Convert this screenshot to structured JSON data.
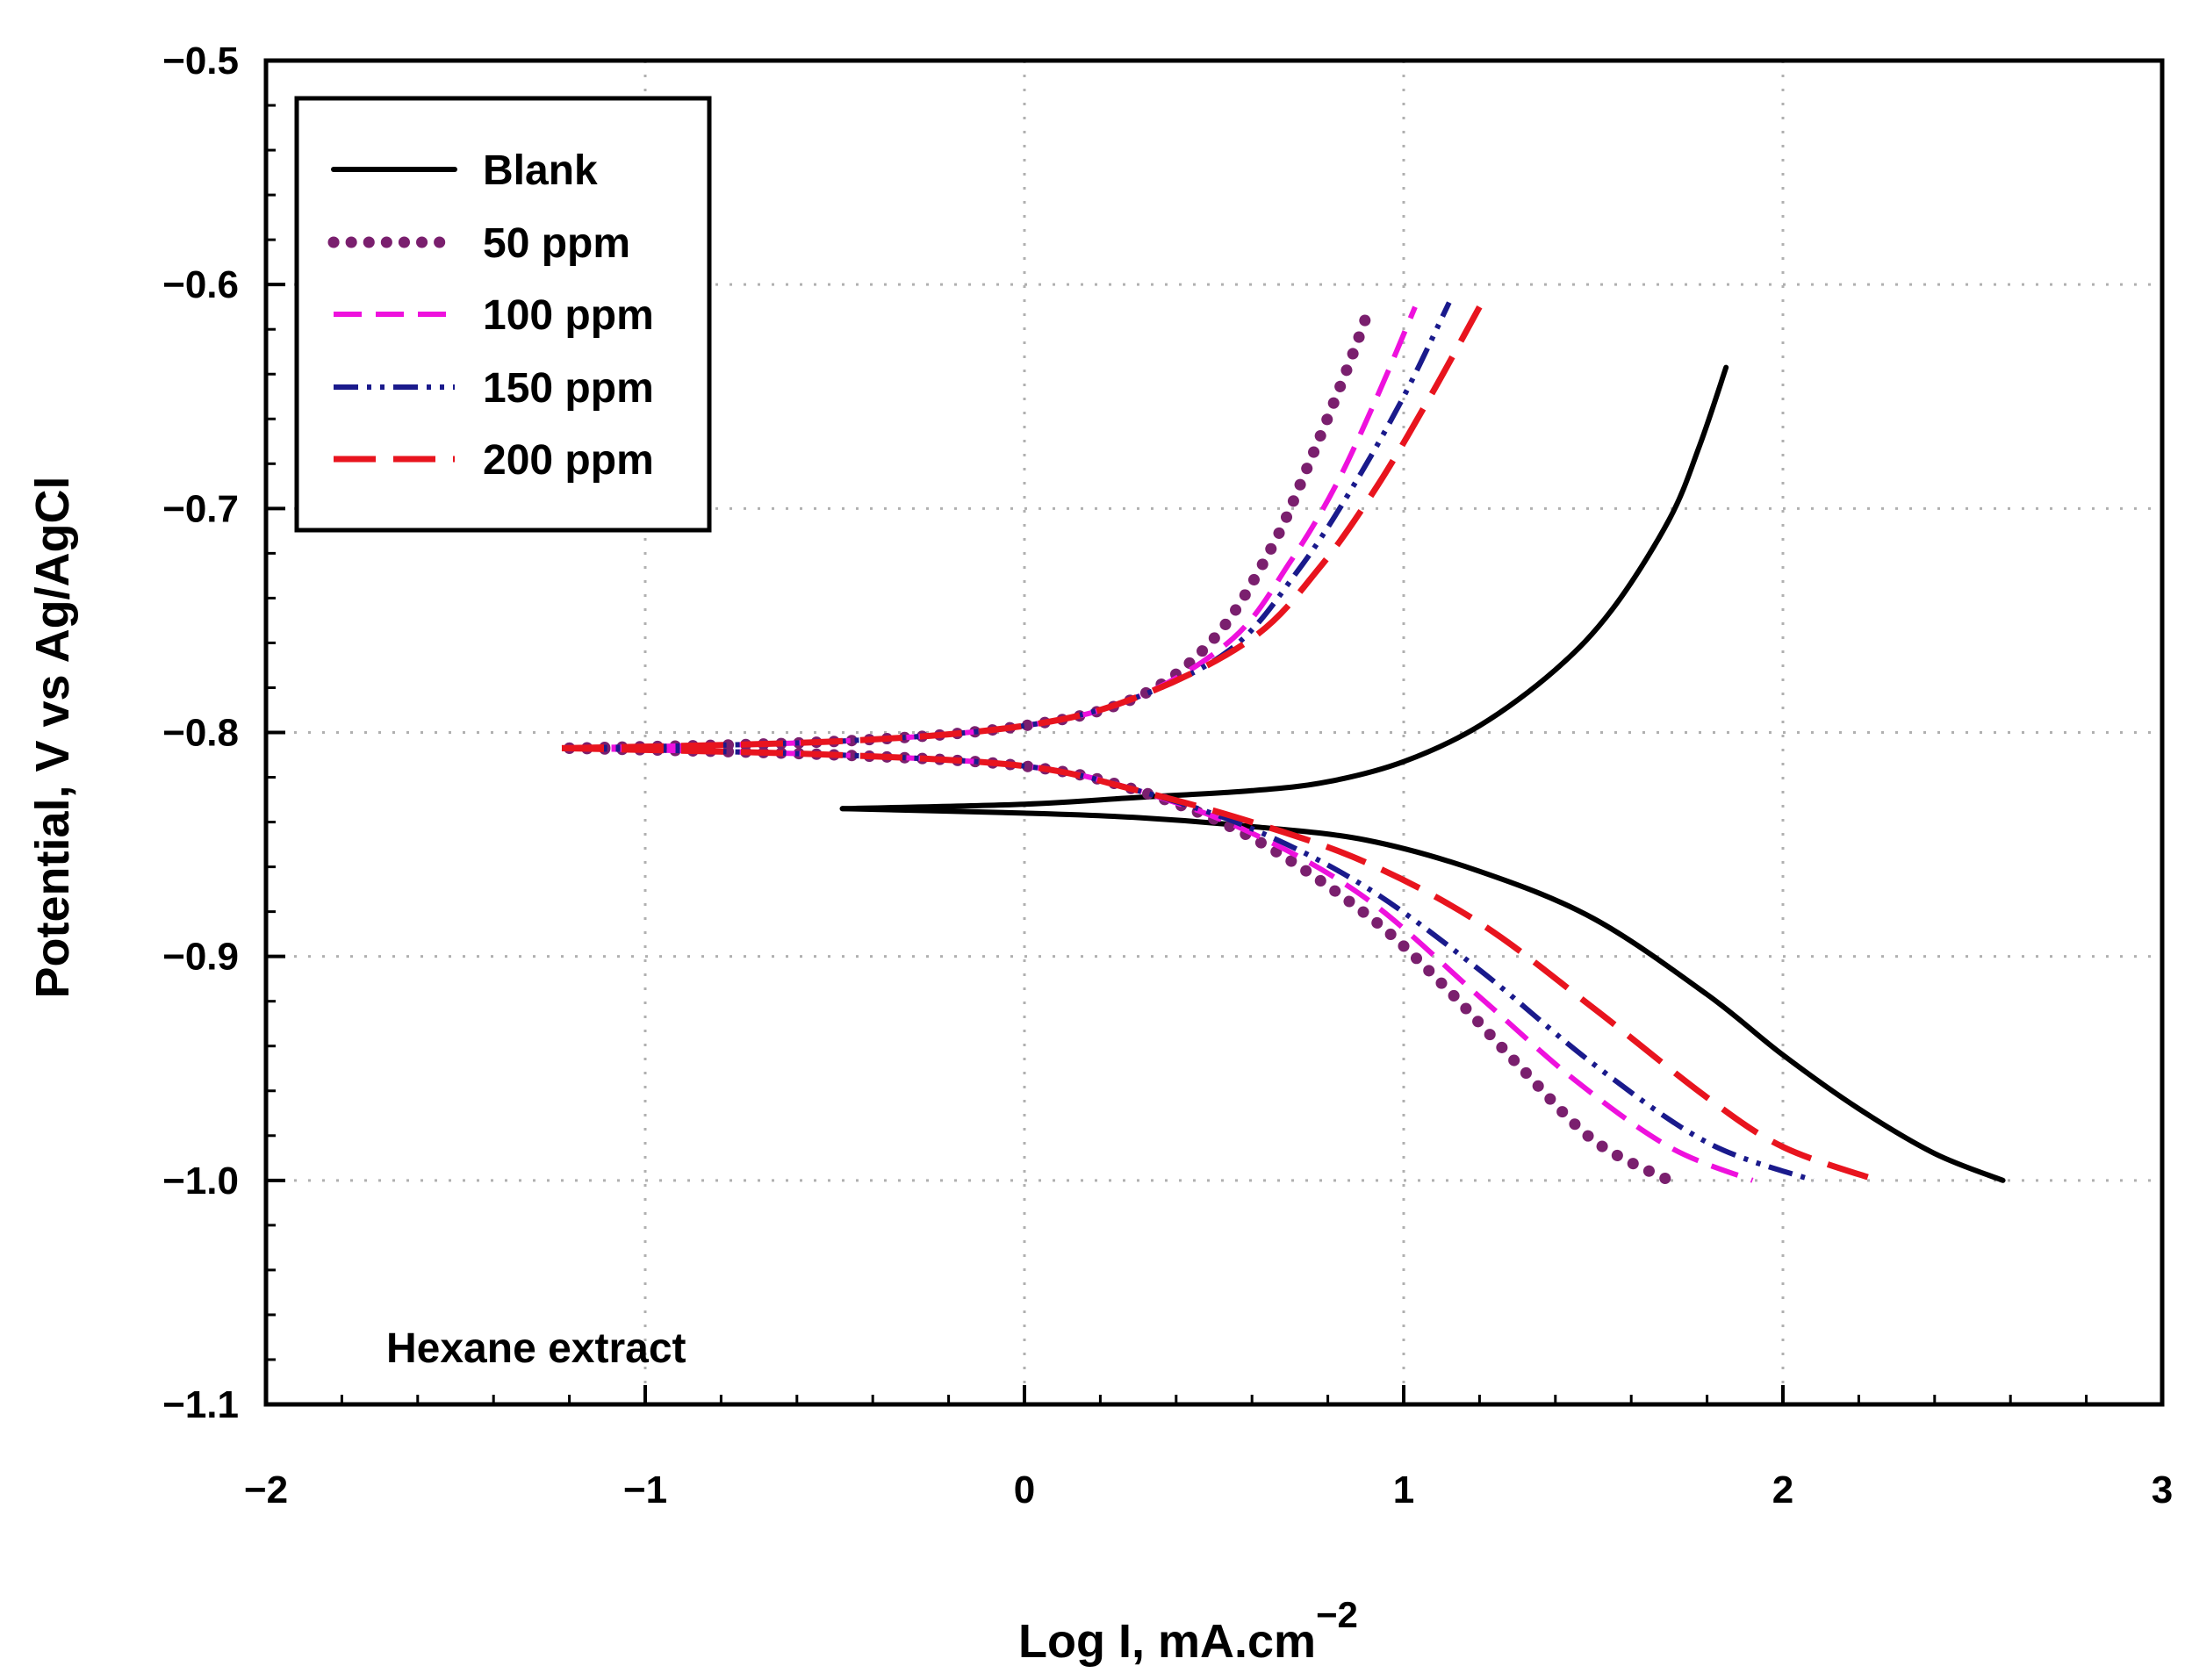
{
  "chart_data": {
    "type": "line",
    "title": "",
    "xlabel": "Log I, mA.cm",
    "xlabel_superscript": "−2",
    "ylabel": "Potential, V vs Ag/AgCl",
    "xlim": [
      -2,
      3
    ],
    "ylim": [
      -1.1,
      -0.5
    ],
    "xticks": [
      -2,
      -1,
      0,
      1,
      2,
      3
    ],
    "xtick_labels": [
      "−2",
      "−1",
      "0",
      "1",
      "2",
      "3"
    ],
    "yticks": [
      -0.5,
      -0.6,
      -0.7,
      -0.8,
      -0.9,
      -1.0,
      -1.1
    ],
    "ytick_labels": [
      "−0.5",
      "−0.6",
      "−0.7",
      "−0.8",
      "−0.9",
      "−1.0",
      "−1.1"
    ],
    "grid": true,
    "legend_position": "top-left",
    "annotation": "Hexane extract",
    "series": [
      {
        "name": "Blank",
        "color": "#000000",
        "dash": "solid",
        "anodic": {
          "x": [
            -0.48,
            0.0,
            0.3,
            0.6,
            0.8,
            1.0,
            1.2,
            1.4,
            1.55,
            1.7,
            1.78,
            1.85
          ],
          "y": [
            -0.834,
            -0.832,
            -0.829,
            -0.826,
            -0.822,
            -0.813,
            -0.797,
            -0.772,
            -0.745,
            -0.705,
            -0.672,
            -0.637
          ]
        },
        "cathodic": {
          "x": [
            -0.48,
            0.0,
            0.3,
            0.6,
            0.9,
            1.2,
            1.5,
            1.8,
            2.0,
            2.2,
            2.4,
            2.58
          ],
          "y": [
            -0.834,
            -0.836,
            -0.838,
            -0.842,
            -0.848,
            -0.862,
            -0.883,
            -0.917,
            -0.944,
            -0.968,
            -0.988,
            -1.0
          ]
        }
      },
      {
        "name": "50 ppm",
        "color": "#7a1f6e",
        "dash": "dotted",
        "anodic": {
          "x": [
            -1.2,
            -0.5,
            0.0,
            0.3,
            0.5,
            0.65,
            0.75,
            0.85,
            0.9
          ],
          "y": [
            -0.807,
            -0.804,
            -0.797,
            -0.784,
            -0.758,
            -0.718,
            -0.68,
            -0.638,
            -0.615
          ]
        },
        "cathodic": {
          "x": [
            -1.2,
            -0.5,
            0.0,
            0.3,
            0.6,
            0.9,
            1.1,
            1.3,
            1.5,
            1.7
          ],
          "y": [
            -0.807,
            -0.81,
            -0.815,
            -0.826,
            -0.847,
            -0.881,
            -0.912,
            -0.948,
            -0.982,
            -1.0
          ]
        }
      },
      {
        "name": "100 ppm",
        "color": "#ee11dd",
        "dash": "dashed",
        "anodic": {
          "x": [
            -1.2,
            -0.5,
            0.0,
            0.3,
            0.55,
            0.7,
            0.82,
            0.93,
            1.03
          ],
          "y": [
            -0.807,
            -0.804,
            -0.797,
            -0.784,
            -0.758,
            -0.724,
            -0.69,
            -0.65,
            -0.61
          ]
        },
        "cathodic": {
          "x": [
            -1.2,
            -0.5,
            0.0,
            0.3,
            0.6,
            0.9,
            1.2,
            1.45,
            1.7,
            1.92
          ],
          "y": [
            -0.807,
            -0.81,
            -0.815,
            -0.826,
            -0.845,
            -0.874,
            -0.918,
            -0.955,
            -0.985,
            -1.0
          ]
        }
      },
      {
        "name": "150 ppm",
        "color": "#1a1a8c",
        "dash": "dashdotdot",
        "anodic": {
          "x": [
            -1.2,
            -0.5,
            0.0,
            0.3,
            0.55,
            0.72,
            0.86,
            1.0,
            1.12
          ],
          "y": [
            -0.807,
            -0.804,
            -0.797,
            -0.784,
            -0.762,
            -0.728,
            -0.692,
            -0.65,
            -0.608
          ]
        },
        "cathodic": {
          "x": [
            -1.2,
            -0.5,
            0.0,
            0.3,
            0.6,
            0.9,
            1.2,
            1.5,
            1.8,
            2.08
          ],
          "y": [
            -0.807,
            -0.81,
            -0.815,
            -0.826,
            -0.843,
            -0.869,
            -0.906,
            -0.948,
            -0.983,
            -1.0
          ]
        }
      },
      {
        "name": "200 ppm",
        "color": "#e8141e",
        "dash": "longdash",
        "anodic": {
          "x": [
            -1.22,
            -0.5,
            0.0,
            0.3,
            0.6,
            0.78,
            0.93,
            1.07,
            1.2
          ],
          "y": [
            -0.807,
            -0.804,
            -0.797,
            -0.784,
            -0.758,
            -0.726,
            -0.69,
            -0.65,
            -0.61
          ]
        },
        "cathodic": {
          "x": [
            -1.22,
            -0.5,
            0.0,
            0.3,
            0.6,
            0.9,
            1.2,
            1.5,
            1.8,
            2.0,
            2.25
          ],
          "y": [
            -0.807,
            -0.81,
            -0.815,
            -0.826,
            -0.84,
            -0.858,
            -0.885,
            -0.923,
            -0.963,
            -0.985,
            -1.0
          ]
        }
      }
    ]
  }
}
